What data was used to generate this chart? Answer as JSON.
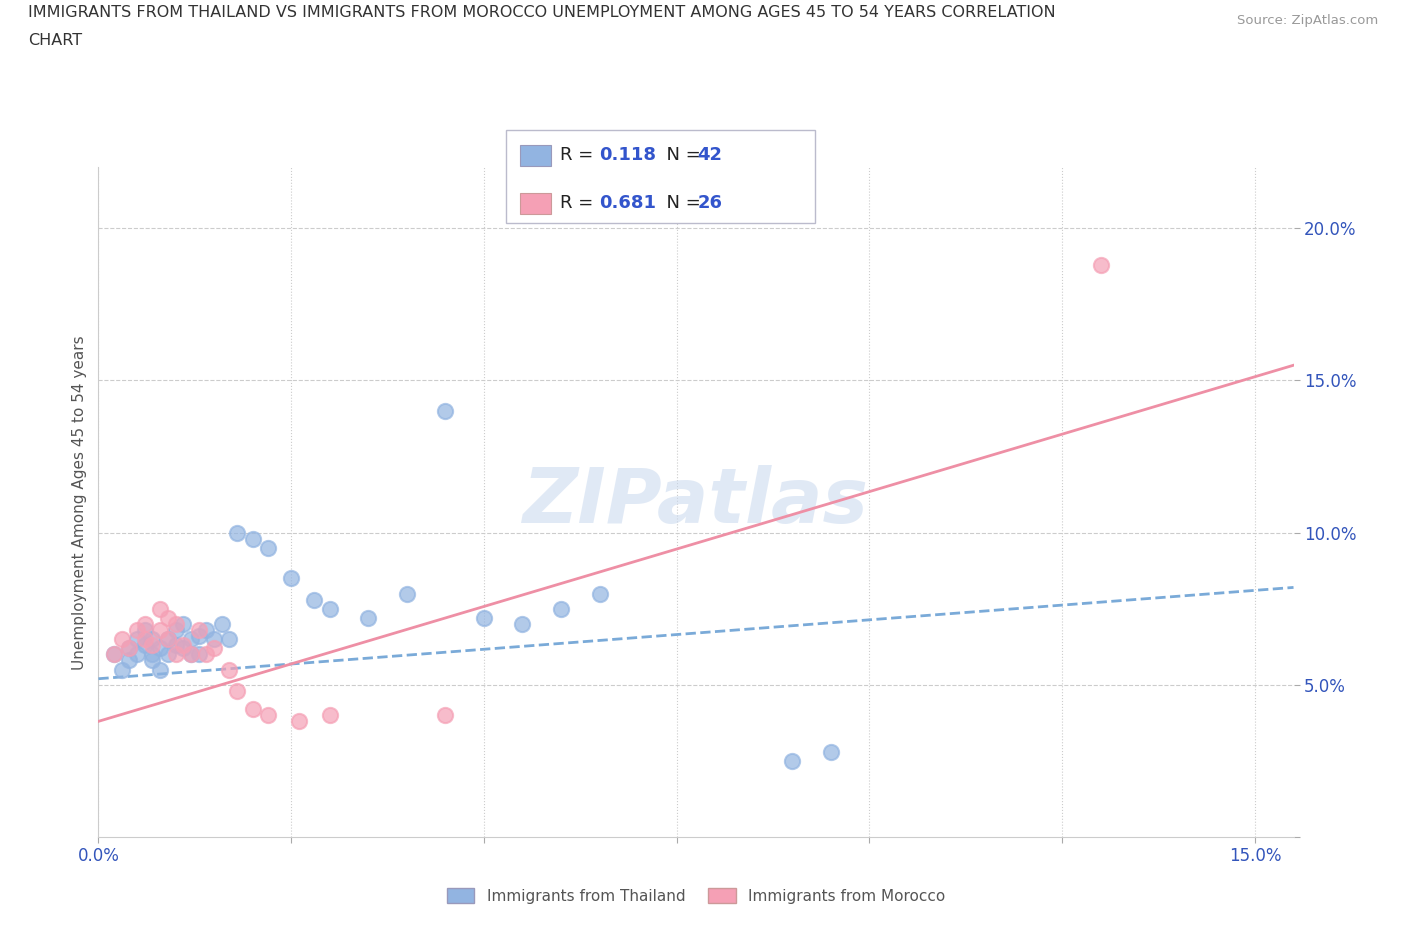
{
  "title_line1": "IMMIGRANTS FROM THAILAND VS IMMIGRANTS FROM MOROCCO UNEMPLOYMENT AMONG AGES 45 TO 54 YEARS CORRELATION",
  "title_line2": "CHART",
  "source_text": "Source: ZipAtlas.com",
  "ylabel": "Unemployment Among Ages 45 to 54 years",
  "xlim": [
    0.0,
    0.155
  ],
  "ylim": [
    0.0,
    0.22
  ],
  "xticks": [
    0.0,
    0.025,
    0.05,
    0.075,
    0.1,
    0.125,
    0.15
  ],
  "yticks": [
    0.0,
    0.05,
    0.1,
    0.15,
    0.2
  ],
  "thailand_color": "#92b4e1",
  "morocco_color": "#f5a0b5",
  "trend_thailand_color": "#7aaad8",
  "trend_morocco_color": "#ee8fa5",
  "thailand_R": "0.118",
  "thailand_N": "42",
  "morocco_R": "0.681",
  "morocco_N": "26",
  "watermark": "ZIPatlas",
  "thailand_scatter_x": [
    0.002,
    0.003,
    0.004,
    0.004,
    0.005,
    0.005,
    0.006,
    0.006,
    0.007,
    0.007,
    0.007,
    0.008,
    0.008,
    0.009,
    0.009,
    0.01,
    0.01,
    0.011,
    0.011,
    0.012,
    0.012,
    0.013,
    0.013,
    0.014,
    0.015,
    0.016,
    0.017,
    0.018,
    0.02,
    0.022,
    0.025,
    0.028,
    0.03,
    0.035,
    0.04,
    0.045,
    0.05,
    0.055,
    0.06,
    0.065,
    0.09,
    0.095
  ],
  "thailand_scatter_y": [
    0.06,
    0.055,
    0.058,
    0.062,
    0.06,
    0.065,
    0.063,
    0.068,
    0.058,
    0.06,
    0.065,
    0.055,
    0.062,
    0.06,
    0.065,
    0.063,
    0.068,
    0.062,
    0.07,
    0.06,
    0.065,
    0.06,
    0.066,
    0.068,
    0.065,
    0.07,
    0.065,
    0.1,
    0.098,
    0.095,
    0.085,
    0.078,
    0.075,
    0.072,
    0.08,
    0.14,
    0.072,
    0.07,
    0.075,
    0.08,
    0.025,
    0.028
  ],
  "morocco_scatter_x": [
    0.002,
    0.003,
    0.004,
    0.005,
    0.006,
    0.006,
    0.007,
    0.008,
    0.008,
    0.009,
    0.009,
    0.01,
    0.01,
    0.011,
    0.012,
    0.013,
    0.014,
    0.015,
    0.017,
    0.018,
    0.02,
    0.022,
    0.026,
    0.03,
    0.045,
    0.13
  ],
  "morocco_scatter_y": [
    0.06,
    0.065,
    0.062,
    0.068,
    0.065,
    0.07,
    0.063,
    0.068,
    0.075,
    0.072,
    0.065,
    0.07,
    0.06,
    0.063,
    0.06,
    0.068,
    0.06,
    0.062,
    0.055,
    0.048,
    0.042,
    0.04,
    0.038,
    0.04,
    0.04,
    0.188
  ],
  "thailand_trend_x": [
    0.0,
    0.155
  ],
  "thailand_trend_y": [
    0.052,
    0.082
  ],
  "morocco_trend_x": [
    0.0,
    0.155
  ],
  "morocco_trend_y": [
    0.038,
    0.155
  ],
  "legend_label_thailand": "Immigrants from Thailand",
  "legend_label_morocco": "Immigrants from Morocco"
}
